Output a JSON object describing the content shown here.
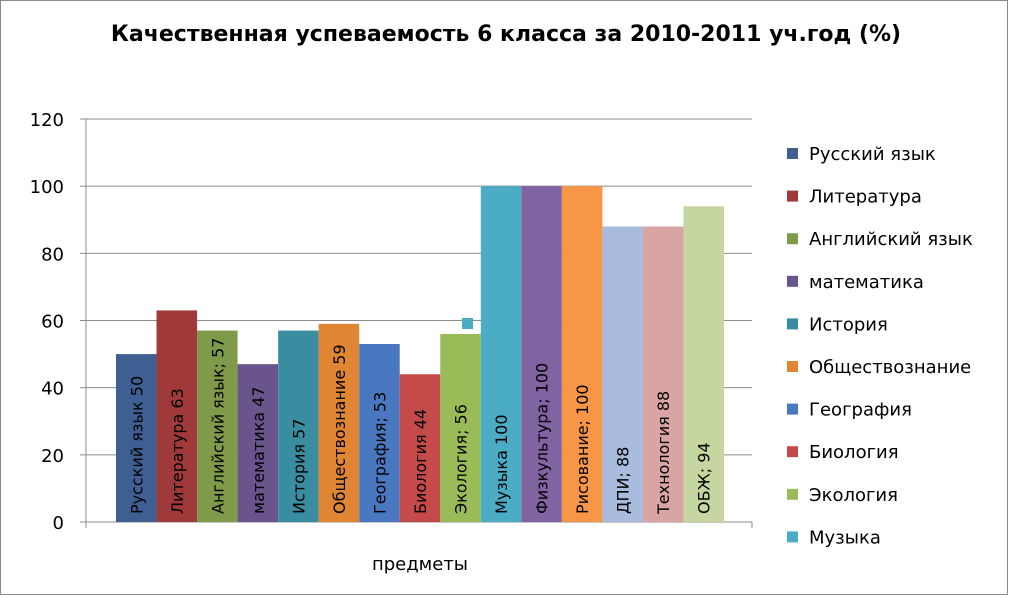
{
  "chart_data": {
    "type": "bar",
    "title": "Качественная успеваемость 6 класса за 2010-2011 уч.год (%)",
    "xlabel": "предметы",
    "ylabel": "",
    "ylim": [
      0,
      120
    ],
    "yticks": [
      0,
      20,
      40,
      60,
      80,
      100,
      120
    ],
    "grid": true,
    "legend_position": "right",
    "series": [
      {
        "name": "Русский язык",
        "value": 50,
        "label": "Русский язык 50",
        "color": "#3F5F93"
      },
      {
        "name": "Литература",
        "value": 63,
        "label": "Литература 63",
        "color": "#A03A3A"
      },
      {
        "name": "Английский язык",
        "value": 57,
        "label": "Английский язык; 57",
        "color": "#7F9A48"
      },
      {
        "name": "математика",
        "value": 47,
        "label": "математика 47",
        "color": "#69558C"
      },
      {
        "name": "История",
        "value": 57,
        "label": "История 57",
        "color": "#3A8DA1"
      },
      {
        "name": "Обществознание",
        "value": 59,
        "label": "Обществознание 59",
        "color": "#E08532"
      },
      {
        "name": "География",
        "value": 53,
        "label": "География; 53",
        "color": "#4A78C0"
      },
      {
        "name": "Биология",
        "value": 44,
        "label": "Биология 44",
        "color": "#C44B48"
      },
      {
        "name": "Экология",
        "value": 56,
        "label": "Экология; 56",
        "color": "#9BBB59"
      },
      {
        "name": "Музыка",
        "value": 100,
        "label": "Музыка 100",
        "color": "#4BACC6"
      },
      {
        "name": "Физкультура",
        "value": 100,
        "label": "Физкультура; 100",
        "color": "#8064A2"
      },
      {
        "name": "Рисование",
        "value": 100,
        "label": "Рисование; 100",
        "color": "#F79646"
      },
      {
        "name": "ДПИ",
        "value": 88,
        "label": "ДПИ; 88",
        "color": "#A9BCDD"
      },
      {
        "name": "Технология",
        "value": 88,
        "label": "Технология 88",
        "color": "#D9A5A4"
      },
      {
        "name": "ОБЖ",
        "value": 94,
        "label": "ОБЖ; 94",
        "color": "#C5D6A0"
      }
    ],
    "legend_visible": [
      "Русский язык",
      "Литература",
      "Английский язык",
      "математика",
      "История",
      "Обществознание",
      "География",
      "Биология",
      "Экология",
      "Музыка"
    ]
  }
}
